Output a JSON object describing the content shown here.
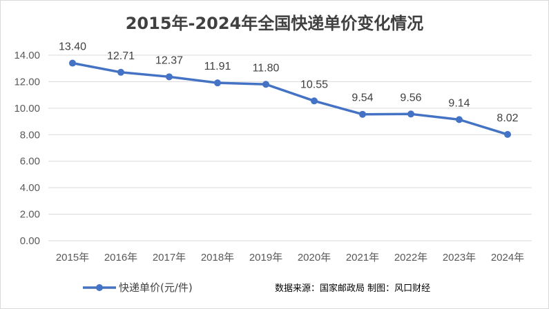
{
  "chart_data": {
    "type": "line",
    "title": "2015年-2024年全国快递单价变化情况",
    "categories": [
      "2015年",
      "2016年",
      "2017年",
      "2018年",
      "2019年",
      "2020年",
      "2021年",
      "2022年",
      "2023年",
      "2024年"
    ],
    "series": [
      {
        "name": "快递单价(元/件)",
        "values": [
          13.4,
          12.71,
          12.37,
          11.91,
          11.8,
          10.55,
          9.54,
          9.56,
          9.14,
          8.02
        ],
        "labels": [
          "13.40",
          "12.71",
          "12.37",
          "11.91",
          "11.80",
          "10.55",
          "9.54",
          "9.56",
          "9.14",
          "8.02"
        ],
        "color": "#4472c4"
      }
    ],
    "ylim": [
      0,
      14
    ],
    "ytick_labels": [
      "0.00",
      "2.00",
      "4.00",
      "6.00",
      "8.00",
      "10.00",
      "12.00",
      "14.00"
    ],
    "grid": true,
    "legend_position": "bottom-left"
  },
  "source_note": "数据来源：国家邮政局 制图：风口财经",
  "colors": {
    "series": "#4472c4",
    "grid": "#d9d9d9"
  }
}
